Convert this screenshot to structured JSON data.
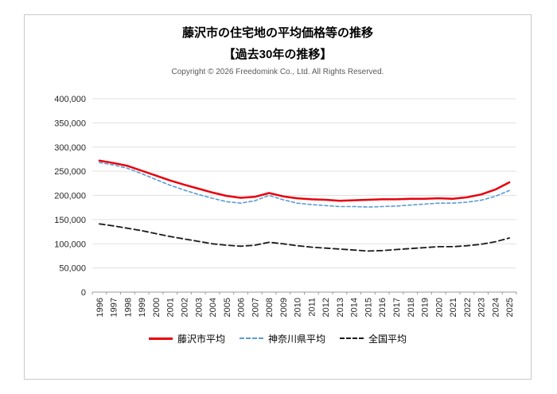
{
  "header": {
    "title": "藤沢市の住宅地の平均価格等の推移",
    "subtitle": "【過去30年の推移】",
    "copyright": "Copyright © 2026 Freedomink Co., Ltd. All Rights Reserved."
  },
  "colors": {
    "grid": "#e0e0e0",
    "axis": "#9a9a9a",
    "tick_label": "#262626",
    "copyright": "#595959",
    "frame_border": "#c9c9c9",
    "fujisawa_red": "#e8000d",
    "kanagawa_blue": "#5b9bd5",
    "national_black": "#1a1a1a"
  },
  "chart_data": {
    "type": "line",
    "title": "藤沢市の住宅地の平均価格等の推移",
    "subtitle": "【過去30年の推移】",
    "xlabel": "",
    "ylabel": "",
    "ylim": [
      0,
      400000
    ],
    "ytick": 50000,
    "grid": true,
    "legend_position": "bottom",
    "categories": [
      "1996",
      "1997",
      "1998",
      "1999",
      "2000",
      "2001",
      "2002",
      "2003",
      "2004",
      "2005",
      "2006",
      "2007",
      "2008",
      "2009",
      "2010",
      "2011",
      "2012",
      "2013",
      "2014",
      "2015",
      "2016",
      "2017",
      "2018",
      "2019",
      "2020",
      "2021",
      "2022",
      "2023",
      "2024",
      "2025"
    ],
    "series": [
      {
        "name": "藤沢市平均",
        "color": "#e8000d",
        "dash": null,
        "width": 2.5,
        "values": [
          272000,
          267000,
          261000,
          251000,
          241000,
          231000,
          222000,
          214000,
          206000,
          199000,
          195000,
          197000,
          205000,
          198000,
          194000,
          192000,
          191000,
          189000,
          190000,
          191000,
          192000,
          192000,
          193000,
          193000,
          194000,
          193000,
          196000,
          202000,
          212000,
          227000
        ]
      },
      {
        "name": "神奈川県平均",
        "color": "#5b9bd5",
        "dash": "4,3",
        "width": 1.6,
        "values": [
          268000,
          263000,
          256000,
          245000,
          233000,
          221000,
          211000,
          202000,
          194000,
          187000,
          184000,
          189000,
          200000,
          191000,
          184000,
          181000,
          179000,
          177000,
          177000,
          176000,
          177000,
          178000,
          180000,
          182000,
          184000,
          184000,
          186000,
          190000,
          198000,
          210000
        ]
      },
      {
        "name": "全国平均",
        "color": "#1a1a1a",
        "dash": "7,4",
        "width": 1.8,
        "values": [
          141000,
          137000,
          132000,
          127000,
          121000,
          115000,
          110000,
          105000,
          100000,
          97000,
          95000,
          97000,
          103000,
          100000,
          96000,
          93000,
          91000,
          89000,
          87000,
          85000,
          86000,
          88000,
          90000,
          92000,
          94000,
          94000,
          96000,
          99000,
          104000,
          112000
        ]
      }
    ]
  }
}
